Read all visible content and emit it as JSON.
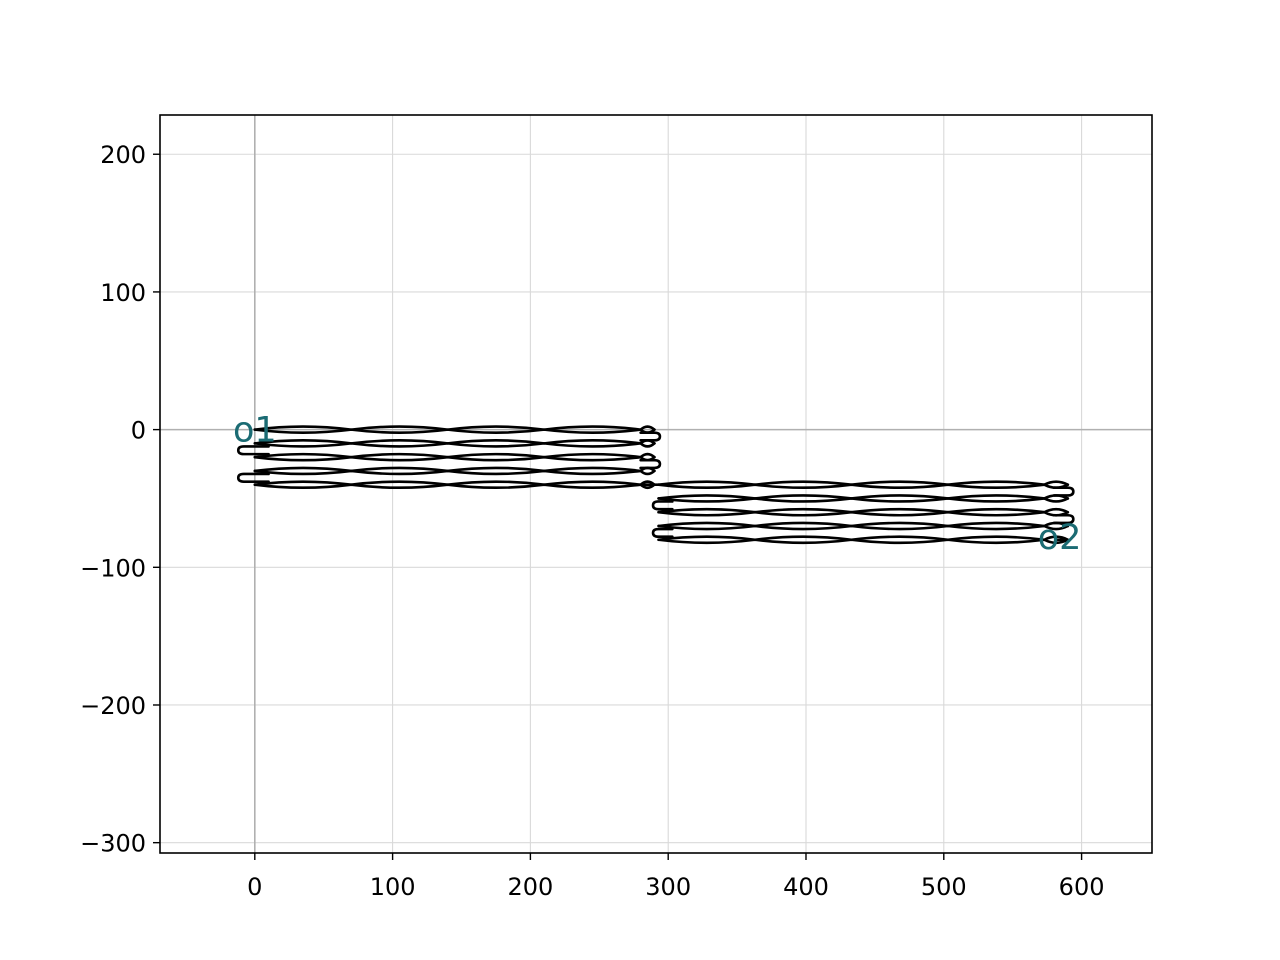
{
  "chart_data": {
    "type": "line",
    "title": "",
    "xlabel": "",
    "ylabel": "",
    "xlim": [
      -68.8,
      651.1
    ],
    "ylim": [
      -307.5,
      228.5
    ],
    "x_ticks": [
      0,
      100,
      200,
      300,
      400,
      500,
      600
    ],
    "y_ticks": [
      200,
      100,
      0,
      -100,
      -200,
      -300
    ],
    "x_tick_labels": [
      "0",
      "100",
      "200",
      "300",
      "400",
      "500",
      "600"
    ],
    "y_tick_labels": [
      "200",
      "100",
      "0",
      "−100",
      "−200",
      "−300"
    ],
    "grid": true,
    "origin_axes_lines": true,
    "series": [
      {
        "style": "waveguide outline",
        "sections": [
          {
            "x_range": [
              0,
              290
            ],
            "row_centers_y": [
              0,
              -10,
              -20,
              -30,
              -40
            ],
            "bend_left_x": -8,
            "bend_right_x": 290
          },
          {
            "x_range": [
              293,
              590
            ],
            "row_centers_y": [
              -40,
              -50,
              -60,
              -70,
              -80
            ],
            "bend_left_x": 293,
            "bend_right_x": 590
          }
        ],
        "connector_y": -40
      }
    ],
    "annotations": [
      {
        "text": "o1",
        "x": 0,
        "y": 0
      },
      {
        "text": "o2",
        "x": 584,
        "y": -78
      }
    ],
    "colors": {
      "path": "#000000",
      "port_text": "#1b6b73",
      "grid": "#d9d9d9",
      "axis_zero": "#b0b0b0"
    }
  }
}
